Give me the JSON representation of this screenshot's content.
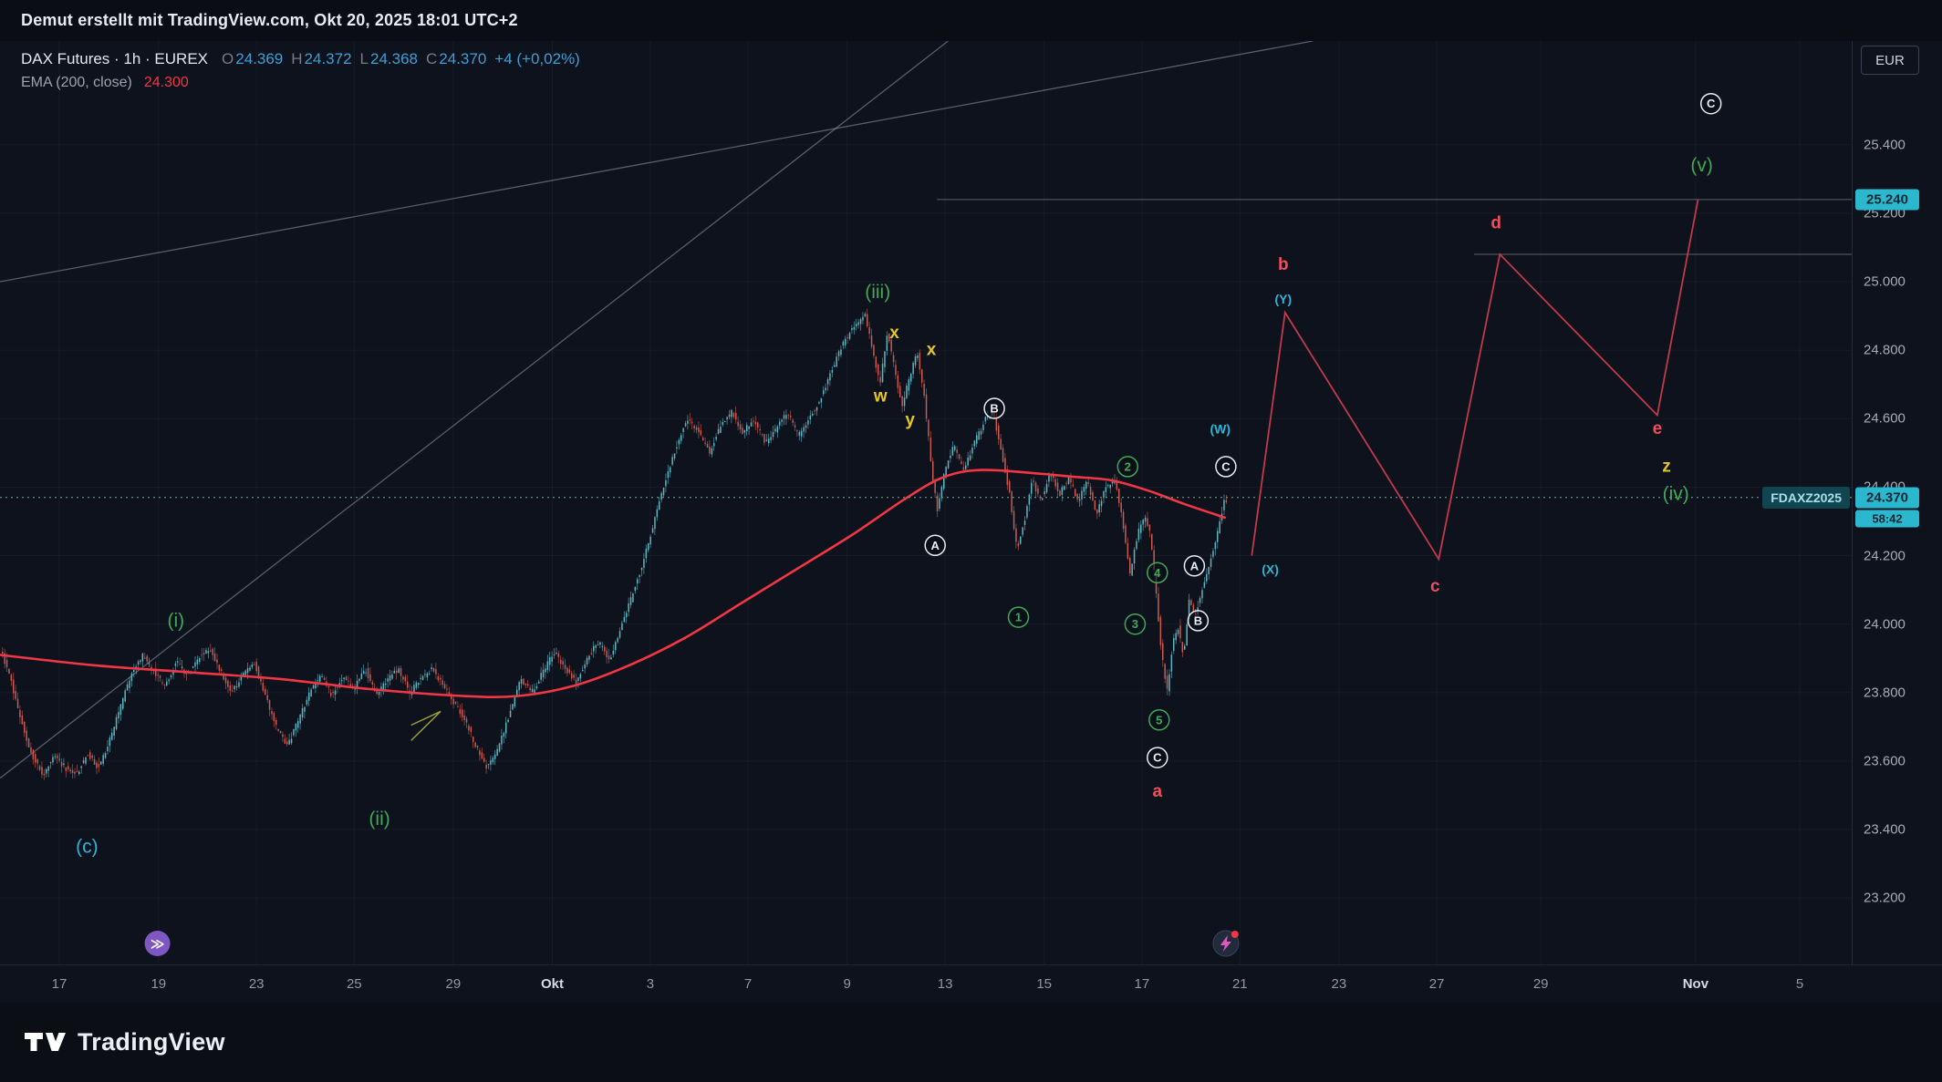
{
  "topbar": {
    "text": "Demut erstellt mit TradingView.com, Okt 20, 2025 18:01 UTC+2"
  },
  "legend": {
    "symbol": "DAX Futures · 1h · EUREX",
    "o_label": "O",
    "o_value": "24.369",
    "h_label": "H",
    "h_value": "24.372",
    "l_label": "L",
    "l_value": "24.368",
    "c_label": "C",
    "c_value": "24.370",
    "change": "+4 (+0,02%)",
    "indicator": "EMA (200, close)",
    "indicator_value": "24.300"
  },
  "price_scale": {
    "currency": "EUR",
    "ticks": [
      {
        "label": "25.400",
        "price": 25.4
      },
      {
        "label": "25.200",
        "price": 25.2
      },
      {
        "label": "25.000",
        "price": 25.0
      },
      {
        "label": "24.800",
        "price": 24.8
      },
      {
        "label": "24.600",
        "price": 24.6
      },
      {
        "label": "24.400",
        "price": 24.4
      },
      {
        "label": "24.200",
        "price": 24.2
      },
      {
        "label": "24.000",
        "price": 24.0
      },
      {
        "label": "23.800",
        "price": 23.8
      },
      {
        "label": "23.600",
        "price": 23.6
      },
      {
        "label": "23.400",
        "price": 23.4
      },
      {
        "label": "23.200",
        "price": 23.2
      }
    ],
    "target_badge": {
      "text": "25.240",
      "price": 25.24
    },
    "price_badge": {
      "text": "24.370",
      "price": 24.37
    },
    "countdown_badge": {
      "text": "58:42"
    },
    "contract_label": {
      "text": "FDAXZ2025",
      "price": 24.37
    }
  },
  "time_scale": {
    "ticks": [
      {
        "label": "17",
        "x": 0.032
      },
      {
        "label": "19",
        "x": 0.0856
      },
      {
        "label": "23",
        "x": 0.1385
      },
      {
        "label": "25",
        "x": 0.1913
      },
      {
        "label": "29",
        "x": 0.2448
      },
      {
        "label": "Okt",
        "x": 0.2983,
        "month": true
      },
      {
        "label": "3",
        "x": 0.3512
      },
      {
        "label": "7",
        "x": 0.404
      },
      {
        "label": "9",
        "x": 0.4575
      },
      {
        "label": "13",
        "x": 0.5104
      },
      {
        "label": "15",
        "x": 0.5639
      },
      {
        "label": "17",
        "x": 0.6167
      },
      {
        "label": "21",
        "x": 0.6696
      },
      {
        "label": "23",
        "x": 0.7231
      },
      {
        "label": "27",
        "x": 0.7759
      },
      {
        "label": "29",
        "x": 0.8321
      },
      {
        "label": "Nov",
        "x": 0.9157,
        "month": true
      },
      {
        "label": "5",
        "x": 0.9719
      }
    ]
  },
  "footer": {
    "brand": "TradingView"
  },
  "markers": [
    {
      "name": "replay-marker",
      "x": 0.085,
      "kind": "purple-arrow"
    },
    {
      "name": "event-marker",
      "x": 0.662,
      "kind": "lightning",
      "dot": true
    }
  ],
  "colors": {
    "background": "#0d121c",
    "panel": "#0a0d14",
    "up": "#5cb6c4",
    "down": "#cb5a52",
    "ema": "#f23645",
    "forecast": "#c23a4a",
    "trendline": "rgba(190,200,216,0.42)",
    "level": "rgba(190,200,216,0.45)",
    "grid": "rgba(150,160,180,0.07)",
    "current_price_line": "#5f9f85",
    "green": "#41a857",
    "cyan": "#2cb6d8",
    "yellow": "#e3c727",
    "red": "#ee4f5a",
    "white": "#e9edf3",
    "ohlc_value": "#3d9fd6",
    "badge_bg": "#2bb8cf",
    "badge_text": "#082630",
    "contract_bg": "#114550",
    "contract_text": "#a8e0ee",
    "marker_purple": "#7e57c2",
    "red_dot": "#f23645",
    "drawing": "#9aa13c"
  },
  "chart_data": {
    "type": "candlestick",
    "symbol": "DAX Futures",
    "interval": "1h",
    "exchange": "EUREX",
    "last": {
      "open": 24.369,
      "high": 24.372,
      "low": 24.368,
      "close": 24.37,
      "change_points": 4,
      "change_pct": 0.02
    },
    "ema_200_value": 24.3,
    "y_axis": {
      "top_price": 25.703,
      "bottom_price": 23.006
    },
    "candles_end_x": 0.662,
    "price_path": [
      [
        0,
        23.94
      ],
      [
        0.006,
        23.85
      ],
      [
        0.012,
        23.72
      ],
      [
        0.018,
        23.62
      ],
      [
        0.024,
        23.56
      ],
      [
        0.03,
        23.62
      ],
      [
        0.036,
        23.58
      ],
      [
        0.042,
        23.56
      ],
      [
        0.048,
        23.62
      ],
      [
        0.054,
        23.58
      ],
      [
        0.06,
        23.66
      ],
      [
        0.066,
        23.76
      ],
      [
        0.072,
        23.86
      ],
      [
        0.078,
        23.91
      ],
      [
        0.084,
        23.86
      ],
      [
        0.09,
        23.82
      ],
      [
        0.096,
        23.89
      ],
      [
        0.102,
        23.85
      ],
      [
        0.108,
        23.9
      ],
      [
        0.114,
        23.93
      ],
      [
        0.12,
        23.86
      ],
      [
        0.126,
        23.8
      ],
      [
        0.132,
        23.85
      ],
      [
        0.138,
        23.89
      ],
      [
        0.144,
        23.79
      ],
      [
        0.15,
        23.7
      ],
      [
        0.156,
        23.64
      ],
      [
        0.162,
        23.72
      ],
      [
        0.168,
        23.8
      ],
      [
        0.174,
        23.85
      ],
      [
        0.18,
        23.79
      ],
      [
        0.186,
        23.85
      ],
      [
        0.192,
        23.81
      ],
      [
        0.198,
        23.87
      ],
      [
        0.204,
        23.79
      ],
      [
        0.21,
        23.84
      ],
      [
        0.216,
        23.87
      ],
      [
        0.222,
        23.8
      ],
      [
        0.228,
        23.84
      ],
      [
        0.234,
        23.87
      ],
      [
        0.24,
        23.82
      ],
      [
        0.246,
        23.77
      ],
      [
        0.252,
        23.72
      ],
      [
        0.258,
        23.64
      ],
      [
        0.264,
        23.58
      ],
      [
        0.27,
        23.64
      ],
      [
        0.276,
        23.74
      ],
      [
        0.282,
        23.84
      ],
      [
        0.288,
        23.8
      ],
      [
        0.294,
        23.86
      ],
      [
        0.3,
        23.92
      ],
      [
        0.306,
        23.87
      ],
      [
        0.312,
        23.83
      ],
      [
        0.318,
        23.9
      ],
      [
        0.324,
        23.95
      ],
      [
        0.33,
        23.89
      ],
      [
        0.336,
        23.99
      ],
      [
        0.342,
        24.08
      ],
      [
        0.348,
        24.18
      ],
      [
        0.354,
        24.3
      ],
      [
        0.36,
        24.42
      ],
      [
        0.366,
        24.52
      ],
      [
        0.372,
        24.6
      ],
      [
        0.378,
        24.56
      ],
      [
        0.384,
        24.5
      ],
      [
        0.39,
        24.58
      ],
      [
        0.396,
        24.62
      ],
      [
        0.402,
        24.56
      ],
      [
        0.408,
        24.6
      ],
      [
        0.414,
        24.53
      ],
      [
        0.42,
        24.57
      ],
      [
        0.426,
        24.62
      ],
      [
        0.432,
        24.55
      ],
      [
        0.438,
        24.6
      ],
      [
        0.444,
        24.66
      ],
      [
        0.45,
        24.74
      ],
      [
        0.456,
        24.82
      ],
      [
        0.462,
        24.87
      ],
      [
        0.468,
        24.9
      ],
      [
        0.472,
        24.8
      ],
      [
        0.476,
        24.7
      ],
      [
        0.48,
        24.85
      ],
      [
        0.484,
        24.74
      ],
      [
        0.488,
        24.64
      ],
      [
        0.492,
        24.72
      ],
      [
        0.496,
        24.8
      ],
      [
        0.5,
        24.66
      ],
      [
        0.504,
        24.45
      ],
      [
        0.507,
        24.33
      ],
      [
        0.511,
        24.45
      ],
      [
        0.516,
        24.52
      ],
      [
        0.521,
        24.45
      ],
      [
        0.527,
        24.53
      ],
      [
        0.533,
        24.6
      ],
      [
        0.537,
        24.62
      ],
      [
        0.541,
        24.52
      ],
      [
        0.546,
        24.38
      ],
      [
        0.55,
        24.22
      ],
      [
        0.554,
        24.3
      ],
      [
        0.558,
        24.42
      ],
      [
        0.563,
        24.36
      ],
      [
        0.568,
        24.44
      ],
      [
        0.573,
        24.38
      ],
      [
        0.578,
        24.43
      ],
      [
        0.583,
        24.36
      ],
      [
        0.588,
        24.42
      ],
      [
        0.593,
        24.32
      ],
      [
        0.598,
        24.4
      ],
      [
        0.603,
        24.42
      ],
      [
        0.607,
        24.3
      ],
      [
        0.611,
        24.14
      ],
      [
        0.615,
        24.26
      ],
      [
        0.619,
        24.32
      ],
      [
        0.622,
        24.26
      ],
      [
        0.625,
        24.1
      ],
      [
        0.628,
        23.92
      ],
      [
        0.631,
        23.8
      ],
      [
        0.634,
        23.94
      ],
      [
        0.637,
        23.99
      ],
      [
        0.64,
        23.9
      ],
      [
        0.643,
        24.08
      ],
      [
        0.646,
        24.02
      ],
      [
        0.65,
        24.1
      ],
      [
        0.654,
        24.18
      ],
      [
        0.658,
        24.26
      ],
      [
        0.662,
        24.36
      ]
    ],
    "ema_path": [
      [
        0,
        23.91
      ],
      [
        0.05,
        23.88
      ],
      [
        0.1,
        23.86
      ],
      [
        0.15,
        23.84
      ],
      [
        0.2,
        23.81
      ],
      [
        0.25,
        23.79
      ],
      [
        0.28,
        23.79
      ],
      [
        0.31,
        23.82
      ],
      [
        0.34,
        23.88
      ],
      [
        0.37,
        23.96
      ],
      [
        0.4,
        24.06
      ],
      [
        0.43,
        24.16
      ],
      [
        0.46,
        24.26
      ],
      [
        0.49,
        24.37
      ],
      [
        0.51,
        24.43
      ],
      [
        0.53,
        24.45
      ],
      [
        0.56,
        24.44
      ],
      [
        0.58,
        24.43
      ],
      [
        0.6,
        24.42
      ],
      [
        0.62,
        24.39
      ],
      [
        0.64,
        24.35
      ],
      [
        0.662,
        24.31
      ]
    ],
    "forecast_path": [
      [
        0.676,
        24.2
      ],
      [
        0.694,
        24.91
      ],
      [
        0.777,
        24.19
      ],
      [
        0.81,
        25.08
      ],
      [
        0.895,
        24.61
      ],
      [
        0.917,
        25.24
      ]
    ],
    "trendlines": [
      {
        "from": [
          0.0,
          23.55
        ],
        "to": [
          0.512,
          25.703
        ]
      },
      {
        "from": [
          0.0,
          25.0
        ],
        "to": [
          0.709,
          25.703
        ]
      }
    ],
    "levels": [
      {
        "price": 25.24,
        "from_x": 0.506,
        "to_x": 1.0
      },
      {
        "price": 25.08,
        "from_x": 0.796,
        "to_x": 1.0
      }
    ],
    "current_price_line": {
      "price": 24.37
    },
    "drawing_segments": [
      {
        "pts": [
          [
            0.222,
            23.66
          ],
          [
            0.238,
            23.745
          ]
        ]
      },
      {
        "pts": [
          [
            0.222,
            23.705
          ],
          [
            0.238,
            23.745
          ]
        ]
      }
    ],
    "annotations": [
      {
        "text": "(c)",
        "x": 0.047,
        "price": 23.35,
        "color": "cyan",
        "kind": "wave"
      },
      {
        "text": "(i)",
        "x": 0.095,
        "price": 24.01,
        "color": "green",
        "kind": "wave"
      },
      {
        "text": "(ii)",
        "x": 0.205,
        "price": 23.43,
        "color": "green",
        "kind": "wave"
      },
      {
        "text": "(iii)",
        "x": 0.474,
        "price": 24.97,
        "color": "green",
        "kind": "wave"
      },
      {
        "text": "w",
        "x": 0.4755,
        "price": 24.665,
        "color": "yellow",
        "kind": "letter"
      },
      {
        "text": "x",
        "x": 0.483,
        "price": 24.85,
        "color": "yellow",
        "kind": "letter"
      },
      {
        "text": "y",
        "x": 0.4915,
        "price": 24.595,
        "color": "yellow",
        "kind": "letter"
      },
      {
        "text": "x",
        "x": 0.503,
        "price": 24.8,
        "color": "yellow",
        "kind": "letter"
      },
      {
        "text": "A",
        "x": 0.505,
        "price": 24.23,
        "color": "white",
        "kind": "circled"
      },
      {
        "text": "B",
        "x": 0.537,
        "price": 24.63,
        "color": "white",
        "kind": "circled"
      },
      {
        "text": "1",
        "x": 0.55,
        "price": 24.02,
        "color": "green",
        "kind": "circled"
      },
      {
        "text": "2",
        "x": 0.609,
        "price": 24.46,
        "color": "green",
        "kind": "circled"
      },
      {
        "text": "3",
        "x": 0.613,
        "price": 24.0,
        "color": "green",
        "kind": "circled"
      },
      {
        "text": "4",
        "x": 0.625,
        "price": 24.15,
        "color": "green",
        "kind": "circled"
      },
      {
        "text": "5",
        "x": 0.626,
        "price": 23.72,
        "color": "green",
        "kind": "circled"
      },
      {
        "text": "C",
        "x": 0.625,
        "price": 23.61,
        "color": "white",
        "kind": "circled"
      },
      {
        "text": "a",
        "x": 0.625,
        "price": 23.51,
        "color": "red",
        "kind": "letter"
      },
      {
        "text": "A",
        "x": 0.645,
        "price": 24.17,
        "color": "white",
        "kind": "circled"
      },
      {
        "text": "B",
        "x": 0.647,
        "price": 24.01,
        "color": "white",
        "kind": "circled"
      },
      {
        "text": "C",
        "x": 0.662,
        "price": 24.46,
        "color": "white",
        "kind": "circled"
      },
      {
        "text": "(W)",
        "x": 0.659,
        "price": 24.57,
        "color": "cyan",
        "kind": "minor"
      },
      {
        "text": "(X)",
        "x": 0.686,
        "price": 24.16,
        "color": "cyan",
        "kind": "minor"
      },
      {
        "text": "(Y)",
        "x": 0.693,
        "price": 24.95,
        "color": "cyan",
        "kind": "minor"
      },
      {
        "text": "b",
        "x": 0.693,
        "price": 25.05,
        "color": "red",
        "kind": "letter"
      },
      {
        "text": "c",
        "x": 0.775,
        "price": 24.11,
        "color": "red",
        "kind": "letter"
      },
      {
        "text": "d",
        "x": 0.808,
        "price": 25.17,
        "color": "red",
        "kind": "letter"
      },
      {
        "text": "e",
        "x": 0.895,
        "price": 24.57,
        "color": "red",
        "kind": "letter"
      },
      {
        "text": "z",
        "x": 0.9,
        "price": 24.46,
        "color": "yellow",
        "kind": "letter"
      },
      {
        "text": "(iv)",
        "x": 0.905,
        "price": 24.38,
        "color": "green",
        "kind": "wave"
      },
      {
        "text": "(v)",
        "x": 0.919,
        "price": 25.34,
        "color": "green",
        "kind": "wave"
      },
      {
        "text": "C",
        "x": 0.924,
        "price": 25.52,
        "color": "white",
        "kind": "circled"
      }
    ]
  }
}
